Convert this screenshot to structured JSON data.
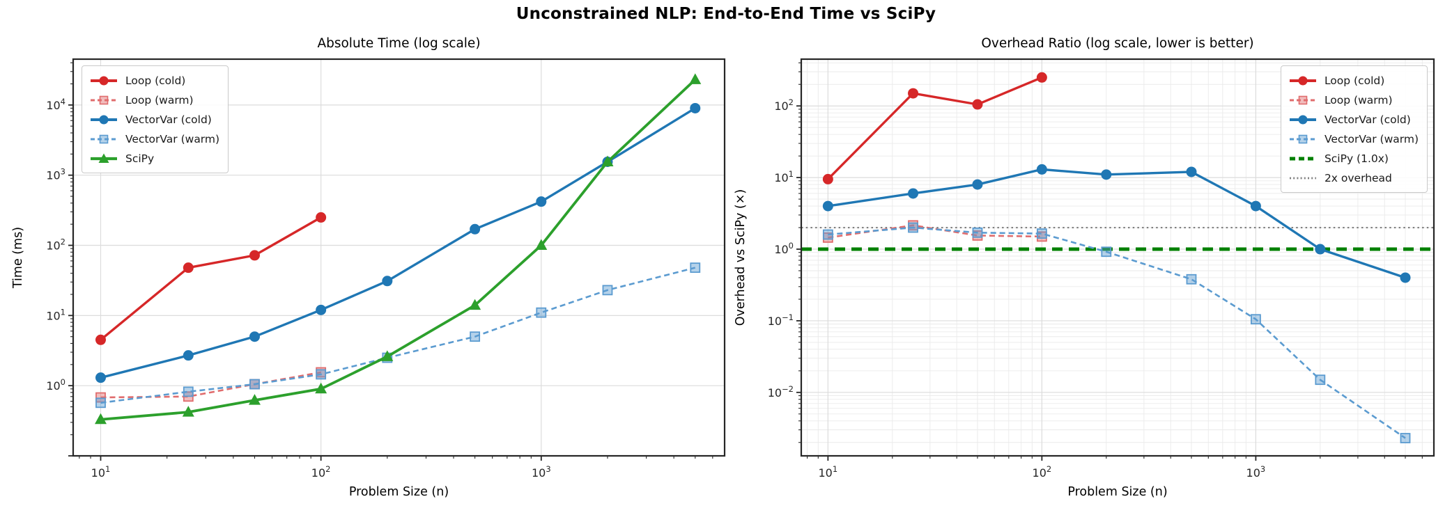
{
  "figure": {
    "title": "Unconstrained NLP: End-to-End Time vs SciPy"
  },
  "colors": {
    "loop_cold": "#d62728",
    "loop_warm": "#e06c6d",
    "vectorvar_cold": "#1f77b4",
    "vectorvar_warm": "#5b9bd0",
    "scipy": "#2ca02c",
    "scipy_reference": "#008000",
    "two_x_reference": "#808080",
    "grid_major": "#dcdcdc",
    "grid_minor": "#eaeaea",
    "spine": "#262626"
  },
  "chart_data": [
    {
      "type": "line",
      "title": "Absolute Time (log scale)",
      "xlabel": "Problem Size (n)",
      "ylabel": "Time (ms)",
      "xscale": "log",
      "yscale": "log",
      "xlim": [
        7.5,
        6800
      ],
      "ylim": [
        0.1,
        45000
      ],
      "x_tick_exponents": [
        1,
        2,
        3
      ],
      "y_tick_exponents": [
        0,
        1,
        2,
        3,
        4
      ],
      "grid": "major",
      "legend_position": "upper-left",
      "series": [
        {
          "name": "Loop (cold)",
          "color": "#d62728",
          "style": "solid",
          "marker": "circle",
          "width": 3.4,
          "x": [
            10,
            25,
            50,
            100
          ],
          "y": [
            4.5,
            48,
            72,
            250
          ]
        },
        {
          "name": "Loop (warm)",
          "color": "#e06c6d",
          "style": "dashed",
          "marker": "square",
          "width": 2.6,
          "x": [
            10,
            25,
            50,
            100
          ],
          "y": [
            0.68,
            0.7,
            1.05,
            1.55
          ]
        },
        {
          "name": "VectorVar (cold)",
          "color": "#1f77b4",
          "style": "solid",
          "marker": "circle",
          "width": 3.4,
          "x": [
            10,
            25,
            50,
            100,
            200,
            500,
            1000,
            2000,
            5000
          ],
          "y": [
            1.3,
            2.7,
            5,
            12,
            31,
            170,
            420,
            1550,
            9000
          ]
        },
        {
          "name": "VectorVar (warm)",
          "color": "#5b9bd0",
          "style": "dashed",
          "marker": "square",
          "width": 2.6,
          "x": [
            10,
            25,
            50,
            100,
            200,
            500,
            1000,
            2000,
            5000
          ],
          "y": [
            0.57,
            0.82,
            1.05,
            1.45,
            2.5,
            5,
            11,
            23,
            48
          ]
        },
        {
          "name": "SciPy",
          "color": "#2ca02c",
          "style": "solid",
          "marker": "triangle",
          "width": 3.8,
          "x": [
            10,
            25,
            50,
            100,
            200,
            500,
            1000,
            2000,
            5000
          ],
          "y": [
            0.33,
            0.42,
            0.62,
            0.9,
            2.6,
            14,
            100,
            1550,
            23000
          ]
        }
      ]
    },
    {
      "type": "line",
      "title": "Overhead Ratio (log scale, lower is better)",
      "xlabel": "Problem Size (n)",
      "ylabel": "Overhead vs SciPy (×)",
      "xscale": "log",
      "yscale": "log",
      "xlim": [
        7.5,
        6800
      ],
      "ylim": [
        0.0013,
        450
      ],
      "x_tick_exponents": [
        1,
        2,
        3
      ],
      "y_tick_exponents": [
        -2,
        -1,
        0,
        1,
        2
      ],
      "grid": "both",
      "legend_position": "upper-right",
      "series": [
        {
          "name": "Loop (cold)",
          "color": "#d62728",
          "style": "solid",
          "marker": "circle",
          "width": 3.4,
          "x": [
            10,
            25,
            50,
            100
          ],
          "y": [
            9.5,
            150,
            105,
            250
          ]
        },
        {
          "name": "Loop (warm)",
          "color": "#e06c6d",
          "style": "dashed",
          "marker": "square",
          "width": 2.6,
          "x": [
            10,
            25,
            50,
            100
          ],
          "y": [
            1.45,
            2.15,
            1.55,
            1.5
          ]
        },
        {
          "name": "VectorVar (cold)",
          "color": "#1f77b4",
          "style": "solid",
          "marker": "circle",
          "width": 3.4,
          "x": [
            10,
            25,
            50,
            100,
            200,
            500,
            1000,
            2000,
            5000
          ],
          "y": [
            4,
            6,
            8,
            13,
            11,
            12,
            4,
            1.0,
            0.4
          ]
        },
        {
          "name": "VectorVar (warm)",
          "color": "#5b9bd0",
          "style": "dashed",
          "marker": "square",
          "width": 2.6,
          "x": [
            10,
            25,
            50,
            100,
            200,
            500,
            1000,
            2000,
            5000
          ],
          "y": [
            1.6,
            2.0,
            1.7,
            1.65,
            0.92,
            0.38,
            0.105,
            0.015,
            0.0023
          ]
        }
      ],
      "reference_lines": [
        {
          "name": "SciPy (1.0x)",
          "y": 1.0,
          "color": "#008000",
          "style": "dashed",
          "width": 5
        },
        {
          "name": "2x overhead",
          "y": 2.0,
          "color": "#808080",
          "style": "dotted",
          "width": 2.2
        }
      ]
    }
  ]
}
